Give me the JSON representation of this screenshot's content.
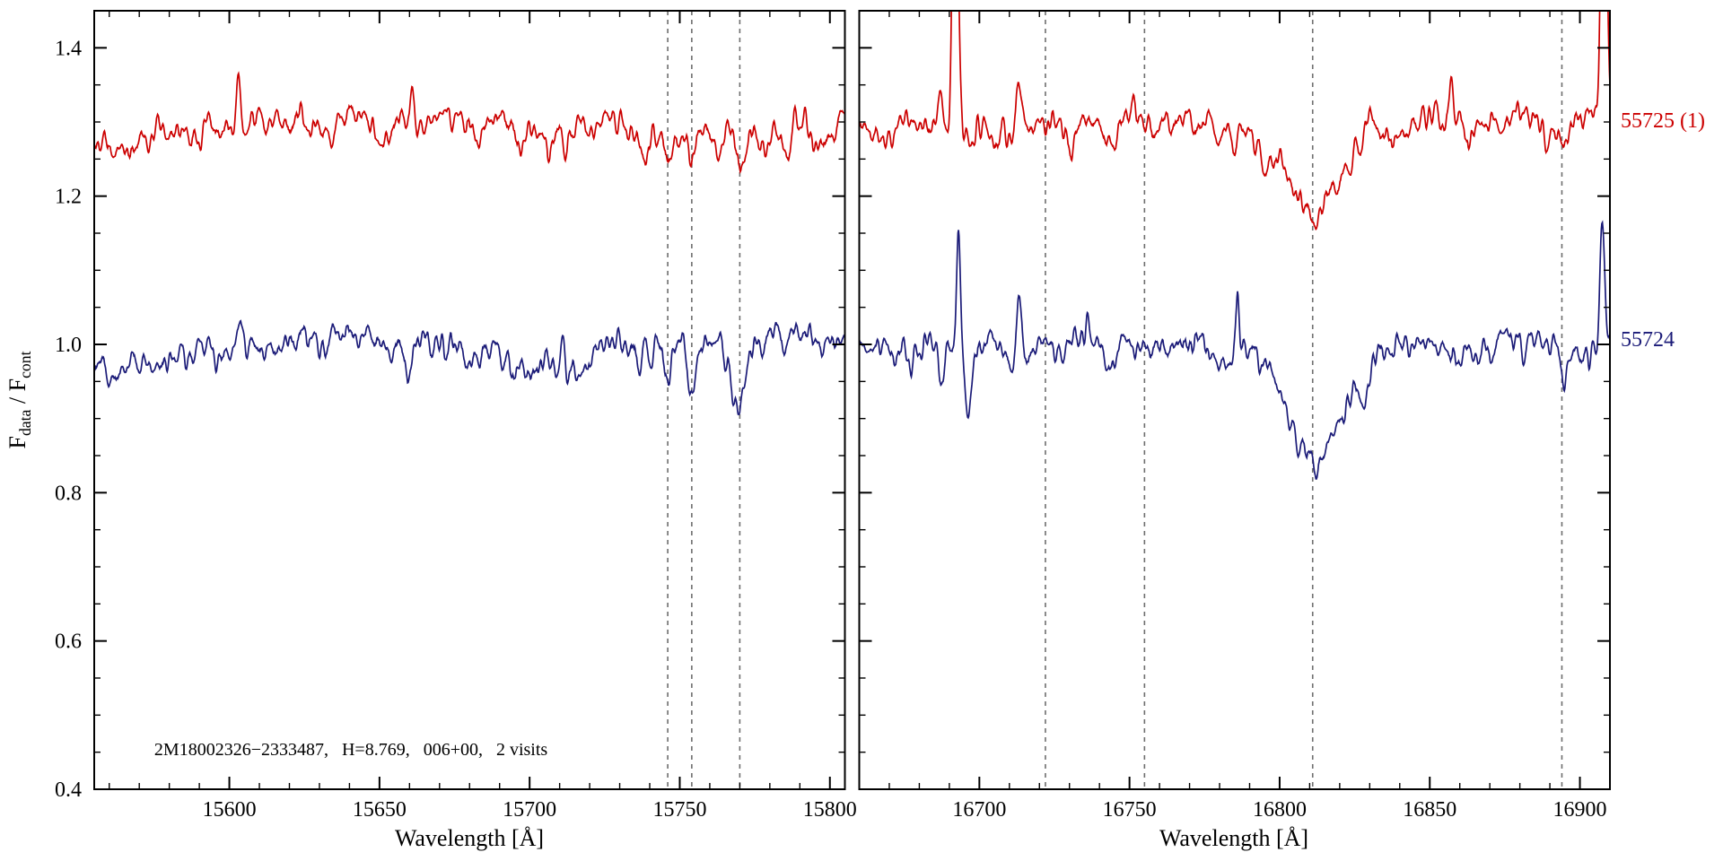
{
  "chart_data": {
    "type": "line",
    "title": "",
    "xlabel": "Wavelength [Å]",
    "ylabel": "F_data / F_cont",
    "ylabel_parts": [
      {
        "t": "F"
      },
      {
        "t": "data",
        "sub": true
      },
      {
        "t": " / F"
      },
      {
        "t": "cont",
        "sub": true
      }
    ],
    "ylim": [
      0.4,
      1.45
    ],
    "yticks": [
      0.4,
      0.6,
      0.8,
      1.0,
      1.2,
      1.4
    ],
    "y_minor_step": 0.05,
    "grid": false,
    "legend_position": "right-margin",
    "axis_color": "#000000",
    "dashed_line_color": "#6e6e6e",
    "annotation": {
      "text": "2M18002326−2333487,   H=8.769,   006+00,   2 visits",
      "x": 15575,
      "y": 0.447
    },
    "panels": [
      {
        "xlim": [
          15555,
          15805
        ],
        "xticks": [
          15600,
          15650,
          15700,
          15750,
          15800
        ],
        "x_minor_step": 10,
        "dashed_lines": [
          15746,
          15754,
          15770
        ]
      },
      {
        "xlim": [
          16660,
          16910
        ],
        "xticks": [
          16700,
          16750,
          16800,
          16850,
          16900
        ],
        "x_minor_step": 10,
        "dashed_lines": [
          16722,
          16755,
          16811,
          16894
        ]
      }
    ],
    "series": [
      {
        "name": "55725 (1)",
        "color": "#cc0000",
        "label_y": 1.3,
        "continuum": 1.3,
        "panels": [
          {
            "baseline": [
              [
                15555,
                1.29
              ],
              [
                15563,
                1.28
              ],
              [
                15572,
                1.292
              ],
              [
                15582,
                1.3
              ],
              [
                15592,
                1.295
              ],
              [
                15602,
                1.3
              ],
              [
                15612,
                1.303
              ],
              [
                15622,
                1.298
              ],
              [
                15633,
                1.305
              ],
              [
                15640,
                1.315
              ],
              [
                15648,
                1.303
              ],
              [
                15660,
                1.3
              ],
              [
                15668,
                1.308
              ],
              [
                15678,
                1.303
              ],
              [
                15688,
                1.3
              ],
              [
                15698,
                1.287
              ],
              [
                15706,
                1.292
              ],
              [
                15715,
                1.3
              ],
              [
                15728,
                1.302
              ],
              [
                15740,
                1.297
              ],
              [
                15755,
                1.293
              ],
              [
                15768,
                1.292
              ],
              [
                15780,
                1.297
              ],
              [
                15792,
                1.3
              ],
              [
                15805,
                1.303
              ]
            ],
            "gaussians": [
              [
                15603,
                0.062,
                0.7
              ],
              [
                15661,
                0.066,
                0.7
              ],
              [
                15590,
                -0.028,
                1.1
              ],
              [
                15631,
                -0.025,
                1.0
              ],
              [
                15650,
                -0.02,
                0.9
              ],
              [
                15697,
                -0.028,
                1.5
              ],
              [
                15712,
                -0.02,
                1.0
              ],
              [
                15738,
                -0.034,
                1.2
              ],
              [
                15746,
                -0.04,
                1.1
              ],
              [
                15754,
                -0.045,
                1.1
              ],
              [
                15763,
                -0.028,
                1.0
              ],
              [
                15770,
                -0.05,
                1.3
              ],
              [
                15778,
                -0.04,
                1.1
              ],
              [
                15786,
                -0.028,
                1.0
              ],
              [
                15795,
                -0.024,
                1.0
              ]
            ],
            "micro_seed": 21,
            "micro_count": 55,
            "micro_depth": [
              0.004,
              0.022
            ],
            "micro_sigma": [
              0.5,
              1.7
            ],
            "noise_seed": 22,
            "noise_amp": 0.006
          },
          {
            "baseline": [
              [
                16660,
                1.292
              ],
              [
                16672,
                1.298
              ],
              [
                16685,
                1.3
              ],
              [
                16700,
                1.298
              ],
              [
                16715,
                1.3
              ],
              [
                16730,
                1.303
              ],
              [
                16745,
                1.305
              ],
              [
                16760,
                1.304
              ],
              [
                16775,
                1.303
              ],
              [
                16790,
                1.3
              ],
              [
                16805,
                1.3
              ],
              [
                16820,
                1.3
              ],
              [
                16835,
                1.3
              ],
              [
                16850,
                1.302
              ],
              [
                16865,
                1.305
              ],
              [
                16880,
                1.308
              ],
              [
                16895,
                1.305
              ],
              [
                16910,
                1.305
              ]
            ],
            "gaussians": [
              [
                16692,
                0.55,
                0.8
              ],
              [
                16687,
                0.04,
                0.8
              ],
              [
                16696,
                -0.03,
                1.0
              ],
              [
                16713,
                0.062,
                0.9
              ],
              [
                16730,
                -0.025,
                1.2
              ],
              [
                16772,
                -0.022,
                1.0
              ],
              [
                16811,
                -0.105,
                8
              ],
              [
                16811,
                -0.015,
                20
              ],
              [
                16830,
                0.03,
                0.8
              ],
              [
                16857,
                0.055,
                0.5
              ],
              [
                16895,
                -0.035,
                1.4
              ],
              [
                16908,
                0.5,
                0.9
              ]
            ],
            "micro_seed": 41,
            "micro_count": 50,
            "micro_depth": [
              0.004,
              0.02
            ],
            "micro_sigma": [
              0.5,
              1.7
            ],
            "noise_seed": 42,
            "noise_amp": 0.006
          }
        ]
      },
      {
        "name": "55724",
        "color": "#1b1b78",
        "label_y": 1.005,
        "continuum": 1.0,
        "panels": [
          {
            "baseline": [
              [
                15555,
                0.975
              ],
              [
                15560,
                0.968
              ],
              [
                15568,
                0.982
              ],
              [
                15578,
                0.99
              ],
              [
                15590,
                0.998
              ],
              [
                15602,
                1.002
              ],
              [
                15615,
                1.005
              ],
              [
                15628,
                1.008
              ],
              [
                15640,
                1.013
              ],
              [
                15652,
                1.01
              ],
              [
                15663,
                1.008
              ],
              [
                15672,
                1.004
              ],
              [
                15682,
                0.998
              ],
              [
                15692,
                0.985
              ],
              [
                15700,
                0.976
              ],
              [
                15708,
                0.99
              ],
              [
                15718,
                0.998
              ],
              [
                15730,
                1.002
              ],
              [
                15742,
                1.004
              ],
              [
                15756,
                1.002
              ],
              [
                15768,
                1.0
              ],
              [
                15778,
                1.012
              ],
              [
                15784,
                1.022
              ],
              [
                15790,
                1.015
              ],
              [
                15798,
                1.008
              ],
              [
                15805,
                1.005
              ]
            ],
            "gaussians": [
              [
                15604,
                0.028,
                0.7
              ],
              [
                15615,
                -0.02,
                0.9
              ],
              [
                15660,
                0.02,
                0.7
              ],
              [
                15736,
                -0.02,
                1.0
              ],
              [
                15746,
                -0.045,
                1.1
              ],
              [
                15754,
                -0.06,
                1.2
              ],
              [
                15770,
                -0.075,
                1.5
              ],
              [
                15777,
                -0.02,
                1.0
              ]
            ],
            "micro_seed": 11,
            "micro_count": 55,
            "micro_depth": [
              0.004,
              0.022
            ],
            "micro_sigma": [
              0.5,
              1.7
            ],
            "noise_seed": 12,
            "noise_amp": 0.006
          },
          {
            "baseline": [
              [
                16660,
                1.0
              ],
              [
                16675,
                1.004
              ],
              [
                16690,
                1.003
              ],
              [
                16705,
                1.004
              ],
              [
                16720,
                1.004
              ],
              [
                16735,
                1.006
              ],
              [
                16750,
                1.008
              ],
              [
                16765,
                1.007
              ],
              [
                16780,
                1.002
              ],
              [
                16795,
                1.0
              ],
              [
                16810,
                1.0
              ],
              [
                16825,
                0.998
              ],
              [
                16840,
                1.0
              ],
              [
                16855,
                1.004
              ],
              [
                16868,
                1.01
              ],
              [
                16878,
                1.018
              ],
              [
                16888,
                1.01
              ],
              [
                16898,
                1.004
              ],
              [
                16910,
                1.008
              ]
            ],
            "gaussians": [
              [
                16693,
                0.155,
                0.6
              ],
              [
                16696,
                -0.115,
                0.9
              ],
              [
                16688,
                -0.03,
                0.9
              ],
              [
                16713,
                0.068,
                0.8
              ],
              [
                16727,
                -0.022,
                1.0
              ],
              [
                16736,
                0.022,
                0.6
              ],
              [
                16745,
                -0.015,
                0.9
              ],
              [
                16786,
                0.078,
                0.45
              ],
              [
                16811,
                -0.13,
                7
              ],
              [
                16811,
                -0.02,
                20
              ],
              [
                16822,
                -0.03,
                5
              ],
              [
                16840,
                0.012,
                2
              ],
              [
                16895,
                -0.055,
                1.4
              ],
              [
                16903,
                -0.025,
                0.9
              ],
              [
                16907.5,
                0.15,
                0.8
              ]
            ],
            "micro_seed": 31,
            "micro_count": 50,
            "micro_depth": [
              0.004,
              0.02
            ],
            "micro_sigma": [
              0.5,
              1.7
            ],
            "noise_seed": 32,
            "noise_amp": 0.006
          }
        ]
      }
    ]
  }
}
